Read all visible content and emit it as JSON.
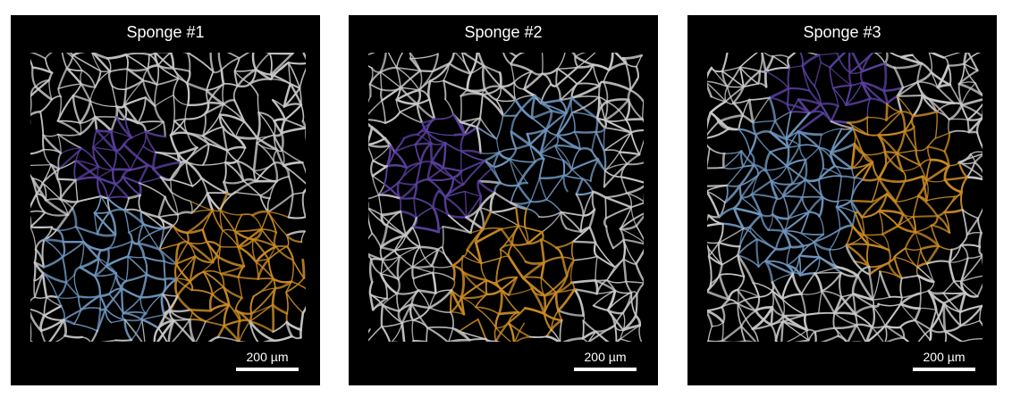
{
  "panels": [
    {
      "title": "Sponge #1",
      "scale_label": "200 µm"
    },
    {
      "title": "Sponge #2",
      "scale_label": "200 µm"
    },
    {
      "title": "Sponge #3",
      "scale_label": "200 µm"
    }
  ],
  "colors": {
    "background": "#000000",
    "strut_gray": "#c8c8c8",
    "region_purple": "#5a3f9e",
    "region_blue": "#6f95bd",
    "region_orange": "#c98a24"
  }
}
